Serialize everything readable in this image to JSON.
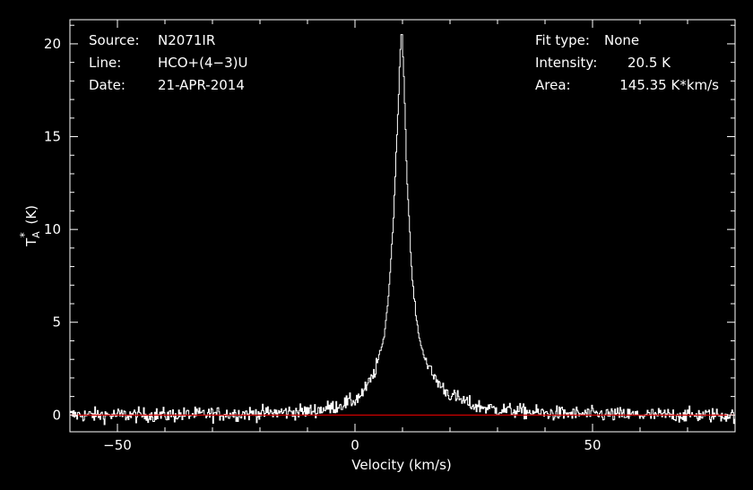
{
  "header": {
    "left": [
      {
        "key": "Source:",
        "value": "N2071IR"
      },
      {
        "key": "Line:",
        "value": "HCO+(4−3)U"
      },
      {
        "key": "Date:",
        "value": "21-APR-2014"
      }
    ],
    "right": [
      {
        "key": "Fit type:",
        "value": "None"
      },
      {
        "key": "Intensity:",
        "value": "20.5 K"
      },
      {
        "key": "Area:",
        "value": "145.35 K*km/s"
      }
    ]
  },
  "chart_data": {
    "type": "line",
    "xlabel": "Velocity (km/s)",
    "ylabel": "T*A (K)",
    "xlim": [
      -60,
      80
    ],
    "ylim": [
      -0.9,
      21.3
    ],
    "xticks": [
      -50,
      0,
      50
    ],
    "yticks": [
      0,
      5,
      10,
      15,
      20
    ],
    "series": [
      {
        "line_color": "#ffffff",
        "profile": {
          "peak_velocity": 9.8,
          "peak_intensity": 20.5,
          "noise_rms": 0.28
        },
        "x": [
          -60,
          -40,
          -20,
          -10,
          -5,
          0,
          2,
          4,
          6,
          7,
          8,
          9,
          9.5,
          9.8,
          10.2,
          11,
          12,
          13,
          14,
          16,
          18,
          20,
          25,
          30,
          40,
          60,
          80
        ],
        "y": [
          0.0,
          0.0,
          0.1,
          0.2,
          0.4,
          0.8,
          1.3,
          2.2,
          4.0,
          6.2,
          10.0,
          16.0,
          19.5,
          20.5,
          19.0,
          12.5,
          7.5,
          5.0,
          3.6,
          2.3,
          1.6,
          1.1,
          0.5,
          0.3,
          0.1,
          0.0,
          0.0
        ]
      },
      {
        "line_color": "#cc0000",
        "x": [
          -60,
          80
        ],
        "y": [
          0,
          0
        ]
      }
    ],
    "grid": false
  }
}
